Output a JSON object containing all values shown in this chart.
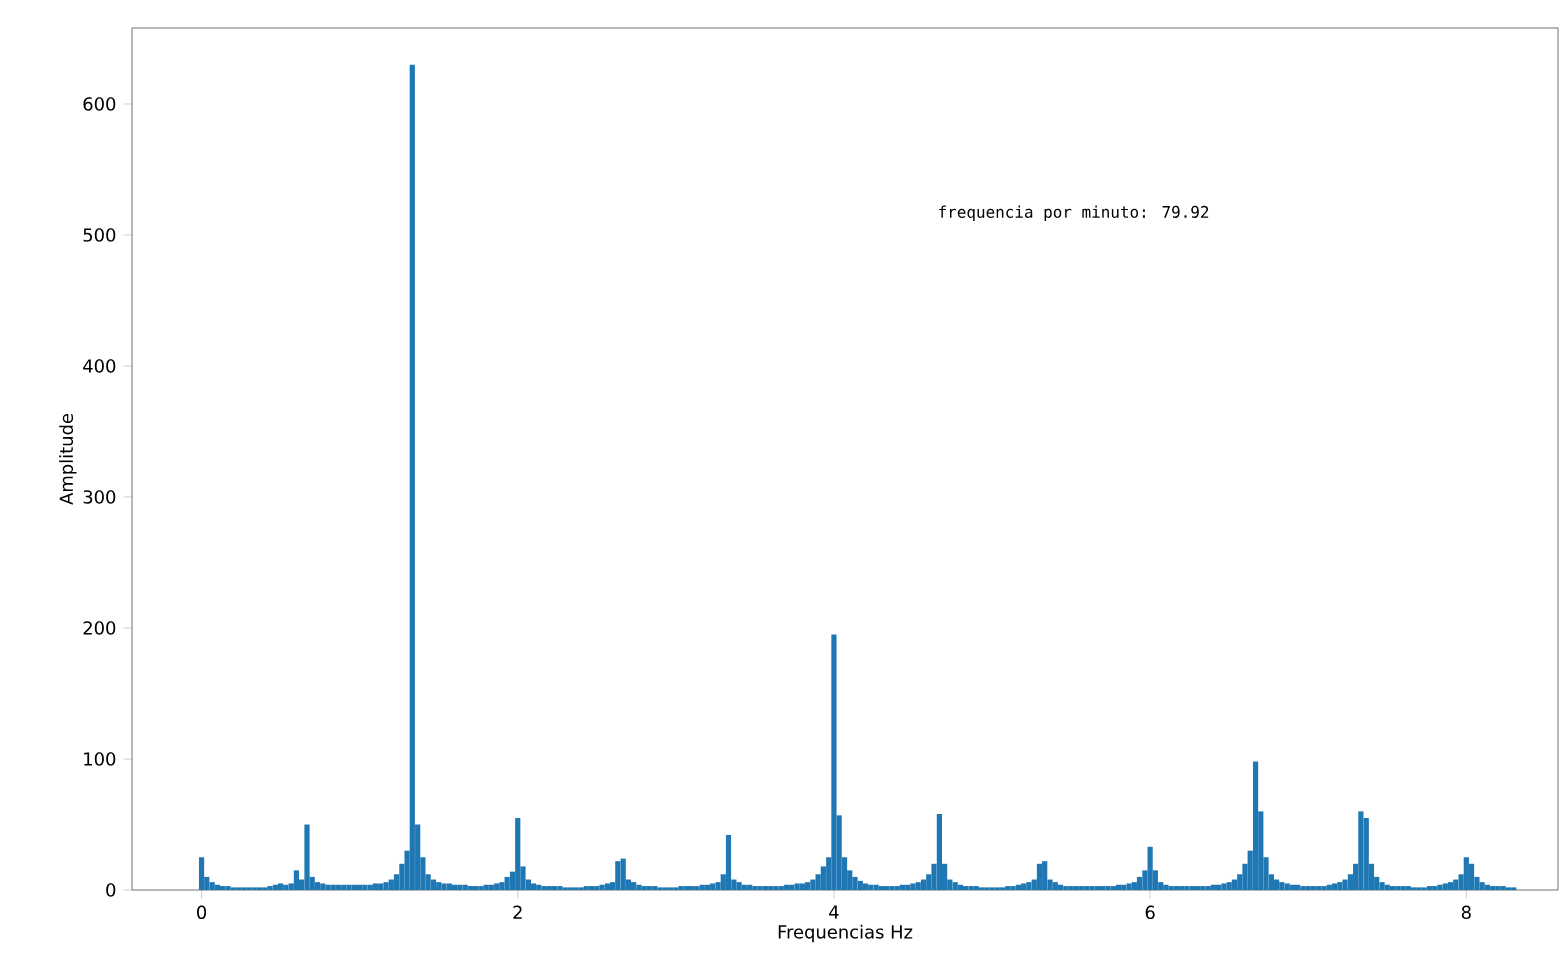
{
  "chart_data": {
    "type": "bar",
    "xlabel": "Frequencias Hz",
    "ylabel": "Amplitude",
    "annotations": [
      "frequencia por minuto:  79.92"
    ],
    "x": [
      0,
      0.033,
      0.067,
      0.1,
      0.133,
      0.167,
      0.2,
      0.233,
      0.267,
      0.3,
      0.333,
      0.367,
      0.4,
      0.433,
      0.467,
      0.5,
      0.533,
      0.567,
      0.6,
      0.633,
      0.667,
      0.7,
      0.733,
      0.767,
      0.8,
      0.833,
      0.867,
      0.9,
      0.933,
      0.967,
      1,
      1.033,
      1.067,
      1.1,
      1.133,
      1.167,
      1.2,
      1.233,
      1.267,
      1.3,
      1.333,
      1.367,
      1.4,
      1.433,
      1.467,
      1.5,
      1.533,
      1.567,
      1.6,
      1.633,
      1.667,
      1.7,
      1.733,
      1.767,
      1.8,
      1.833,
      1.867,
      1.9,
      1.933,
      1.967,
      2,
      2.033,
      2.067,
      2.1,
      2.133,
      2.167,
      2.2,
      2.233,
      2.267,
      2.3,
      2.333,
      2.367,
      2.4,
      2.433,
      2.467,
      2.5,
      2.533,
      2.567,
      2.6,
      2.633,
      2.667,
      2.7,
      2.733,
      2.767,
      2.8,
      2.833,
      2.867,
      2.9,
      2.933,
      2.967,
      3,
      3.033,
      3.067,
      3.1,
      3.133,
      3.167,
      3.2,
      3.233,
      3.267,
      3.3,
      3.333,
      3.367,
      3.4,
      3.433,
      3.467,
      3.5,
      3.533,
      3.567,
      3.6,
      3.633,
      3.667,
      3.7,
      3.733,
      3.767,
      3.8,
      3.833,
      3.867,
      3.9,
      3.933,
      3.967,
      4,
      4.033,
      4.067,
      4.1,
      4.133,
      4.167,
      4.2,
      4.233,
      4.267,
      4.3,
      4.333,
      4.367,
      4.4,
      4.433,
      4.467,
      4.5,
      4.533,
      4.567,
      4.6,
      4.633,
      4.667,
      4.7,
      4.733,
      4.767,
      4.8,
      4.833,
      4.867,
      4.9,
      4.933,
      4.967,
      5,
      5.033,
      5.067,
      5.1,
      5.133,
      5.167,
      5.2,
      5.233,
      5.267,
      5.3,
      5.333,
      5.367,
      5.4,
      5.433,
      5.467,
      5.5,
      5.533,
      5.567,
      5.6,
      5.633,
      5.667,
      5.7,
      5.733,
      5.767,
      5.8,
      5.833,
      5.867,
      5.9,
      5.933,
      5.967,
      6,
      6.033,
      6.067,
      6.1,
      6.133,
      6.167,
      6.2,
      6.233,
      6.267,
      6.3,
      6.333,
      6.367,
      6.4,
      6.433,
      6.467,
      6.5,
      6.533,
      6.567,
      6.6,
      6.633,
      6.667,
      6.7,
      6.733,
      6.767,
      6.8,
      6.833,
      6.867,
      6.9,
      6.933,
      6.967,
      7,
      7.033,
      7.067,
      7.1,
      7.133,
      7.167,
      7.2,
      7.233,
      7.267,
      7.3,
      7.333,
      7.367,
      7.4,
      7.433,
      7.467,
      7.5,
      7.533,
      7.567,
      7.6,
      7.633,
      7.667,
      7.7,
      7.733,
      7.767,
      7.8,
      7.833,
      7.867,
      7.9,
      7.933,
      7.967,
      8,
      8.033,
      8.067,
      8.1,
      8.133,
      8.167,
      8.2,
      8.233,
      8.267,
      8.3
    ],
    "values": [
      25,
      10,
      6,
      4,
      3,
      3,
      2,
      2,
      2,
      2,
      2,
      2,
      2,
      3,
      4,
      5,
      4,
      5,
      15,
      8,
      50,
      10,
      6,
      5,
      4,
      4,
      4,
      4,
      4,
      4,
      4,
      4,
      4,
      5,
      5,
      6,
      8,
      12,
      20,
      30,
      630,
      50,
      25,
      12,
      8,
      6,
      5,
      5,
      4,
      4,
      4,
      3,
      3,
      3,
      4,
      4,
      5,
      6,
      10,
      14,
      55,
      18,
      8,
      5,
      4,
      3,
      3,
      3,
      3,
      2,
      2,
      2,
      2,
      3,
      3,
      3,
      4,
      5,
      6,
      22,
      24,
      8,
      6,
      4,
      3,
      3,
      3,
      2,
      2,
      2,
      2,
      3,
      3,
      3,
      3,
      4,
      4,
      5,
      6,
      12,
      42,
      8,
      6,
      4,
      4,
      3,
      3,
      3,
      3,
      3,
      3,
      4,
      4,
      5,
      5,
      6,
      8,
      12,
      18,
      25,
      195,
      57,
      25,
      15,
      10,
      7,
      5,
      4,
      4,
      3,
      3,
      3,
      3,
      4,
      4,
      5,
      6,
      8,
      12,
      20,
      58,
      20,
      8,
      6,
      4,
      3,
      3,
      3,
      2,
      2,
      2,
      2,
      2,
      3,
      3,
      4,
      5,
      6,
      8,
      20,
      22,
      8,
      6,
      4,
      3,
      3,
      3,
      3,
      3,
      3,
      3,
      3,
      3,
      3,
      4,
      4,
      5,
      6,
      10,
      15,
      33,
      15,
      6,
      4,
      3,
      3,
      3,
      3,
      3,
      3,
      3,
      3,
      4,
      4,
      5,
      6,
      8,
      12,
      20,
      30,
      98,
      60,
      25,
      12,
      8,
      6,
      5,
      4,
      4,
      3,
      3,
      3,
      3,
      3,
      4,
      5,
      6,
      8,
      12,
      20,
      60,
      55,
      20,
      10,
      6,
      4,
      3,
      3,
      3,
      3,
      2,
      2,
      2,
      3,
      3,
      4,
      5,
      6,
      8,
      12,
      25,
      20,
      10,
      6,
      4,
      3,
      3,
      3,
      2,
      2
    ],
    "color": "#1f77b4",
    "xlim": [
      -0.44,
      8.58
    ],
    "ylim": [
      0,
      658
    ],
    "xticks": [
      0,
      2,
      4,
      6,
      8
    ],
    "yticks": [
      0,
      100,
      200,
      300,
      400,
      500,
      600
    ]
  }
}
